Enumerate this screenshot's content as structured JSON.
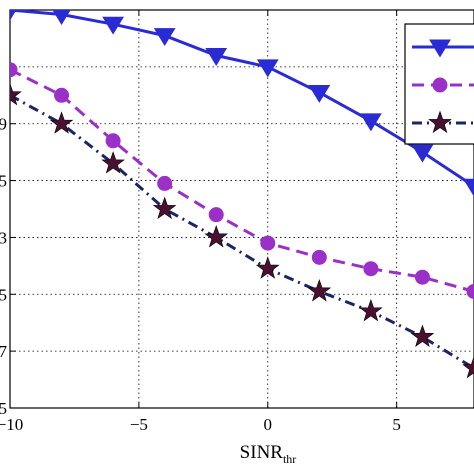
{
  "chart_data": {
    "type": "line",
    "xlabel": "SINR",
    "xlabel_sub": "thr",
    "xlim": [
      -10,
      8
    ],
    "x_ticks": [
      -10,
      -5,
      0,
      5
    ],
    "x_tick_labels": [
      "−10",
      "−5",
      "0",
      "5"
    ],
    "ylim": [
      0,
      7
    ],
    "y_ticks": [
      0,
      1,
      2,
      3,
      4,
      5,
      6,
      7
    ],
    "y_tick_labels": [
      "5",
      ".7",
      ".5",
      ".3",
      ".5",
      ".9",
      "",
      ""
    ],
    "grid": true,
    "legend_position": "top-right",
    "series": [
      {
        "color": "#2b2bd6",
        "line_style": "solid",
        "marker": "triangle-down",
        "x": [
          -10,
          -8,
          -6,
          -4,
          -2,
          0,
          2,
          4,
          6,
          8
        ],
        "y": [
          7.0,
          6.92,
          6.75,
          6.55,
          6.2,
          6.0,
          5.55,
          5.05,
          4.5,
          3.9
        ]
      },
      {
        "color": "#9b30c8",
        "line_style": "dashed",
        "marker": "circle",
        "x": [
          -10,
          -8,
          -6,
          -4,
          -2,
          0,
          2,
          4,
          6,
          8
        ],
        "y": [
          5.95,
          5.5,
          4.7,
          3.95,
          3.4,
          2.9,
          2.65,
          2.45,
          2.3,
          2.05
        ]
      },
      {
        "color": "#1a2466",
        "line_style": "dashdot",
        "marker": "star",
        "marker_fill": "#4a1030",
        "x": [
          -10,
          -8,
          -6,
          -4,
          -2,
          0,
          2,
          4,
          6,
          8
        ],
        "y": [
          5.5,
          5.0,
          4.3,
          3.5,
          3.0,
          2.45,
          2.05,
          1.7,
          1.25,
          0.7
        ]
      }
    ]
  }
}
